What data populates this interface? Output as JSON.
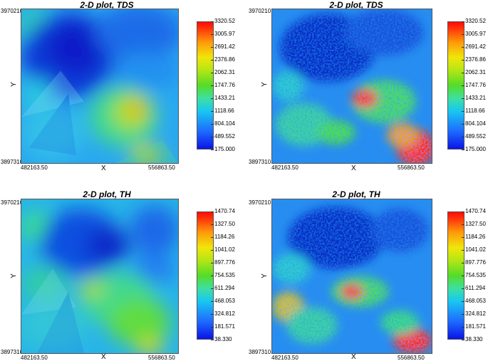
{
  "panels": [
    {
      "title": "2-D plot, TDS",
      "xlabel": "X",
      "ylabel": "Y",
      "xmin": "482163.50",
      "xmax": "556863.50",
      "ymin": "3897310",
      "ymax": "3970210",
      "style": "smooth",
      "colorbar": [
        "3320.52",
        "3005.97",
        "2691.42",
        "2376.86",
        "2062.31",
        "1747.76",
        "1433.21",
        "1118.66",
        "804.104",
        "489.552",
        "175.000"
      ]
    },
    {
      "title": "2-D plot, TDS",
      "xlabel": "X",
      "ylabel": "Y",
      "xmin": "482163.50",
      "xmax": "556863.50",
      "ymin": "3897310",
      "ymax": "3970210",
      "style": "noisy",
      "colorbar": [
        "3320.52",
        "3005.97",
        "2691.42",
        "2376.86",
        "2062.31",
        "1747.76",
        "1433.21",
        "1118.66",
        "804.104",
        "489.552",
        "175.000"
      ]
    },
    {
      "title": "2-D plot, TH",
      "xlabel": "X",
      "ylabel": "Y",
      "xmin": "482163.50",
      "xmax": "556863.50",
      "ymin": "3897310",
      "ymax": "3970210",
      "style": "smooth",
      "colorbar": [
        "1470.74",
        "1327.50",
        "1184.26",
        "1041.02",
        "897.776",
        "754.535",
        "611.294",
        "468.053",
        "324.812",
        "181.571",
        "38.330"
      ]
    },
    {
      "title": "2-D plot, TH",
      "xlabel": "X",
      "ylabel": "Y",
      "xmin": "482163.50",
      "xmax": "556863.50",
      "ymin": "3897310",
      "ymax": "3970210",
      "style": "noisy",
      "colorbar": [
        "1470.74",
        "1327.50",
        "1184.26",
        "1041.02",
        "897.776",
        "754.535",
        "611.294",
        "468.053",
        "324.812",
        "181.571",
        "38.330"
      ]
    }
  ],
  "chart_data": [
    {
      "type": "heatmap",
      "title": "2-D plot, TDS",
      "xlabel": "X",
      "ylabel": "Y",
      "xlim": [
        482163.5,
        556863.5
      ],
      "ylim": [
        3897310,
        3970210
      ],
      "colorbar_range": [
        175.0,
        3320.52
      ],
      "colorbar_ticks": [
        3320.52,
        3005.97,
        2691.42,
        2376.86,
        2062.31,
        1747.76,
        1433.21,
        1118.66,
        804.104,
        489.552,
        175.0
      ]
    },
    {
      "type": "heatmap",
      "title": "2-D plot, TDS",
      "xlabel": "X",
      "ylabel": "Y",
      "xlim": [
        482163.5,
        556863.5
      ],
      "ylim": [
        3897310,
        3970210
      ],
      "colorbar_range": [
        175.0,
        3320.52
      ],
      "colorbar_ticks": [
        3320.52,
        3005.97,
        2691.42,
        2376.86,
        2062.31,
        1747.76,
        1433.21,
        1118.66,
        804.104,
        489.552,
        175.0
      ]
    },
    {
      "type": "heatmap",
      "title": "2-D plot, TH",
      "xlabel": "X",
      "ylabel": "Y",
      "xlim": [
        482163.5,
        556863.5
      ],
      "ylim": [
        3897310,
        3970210
      ],
      "colorbar_range": [
        38.33,
        1470.74
      ],
      "colorbar_ticks": [
        1470.74,
        1327.5,
        1184.26,
        1041.02,
        897.776,
        754.535,
        611.294,
        468.053,
        324.812,
        181.571,
        38.33
      ]
    },
    {
      "type": "heatmap",
      "title": "2-D plot, TH",
      "xlabel": "X",
      "ylabel": "Y",
      "xlim": [
        482163.5,
        556863.5
      ],
      "ylim": [
        3897310,
        3970210
      ],
      "colorbar_range": [
        38.33,
        1470.74
      ],
      "colorbar_ticks": [
        1470.74,
        1327.5,
        1184.26,
        1041.02,
        897.776,
        754.535,
        611.294,
        468.053,
        324.812,
        181.571,
        38.33
      ]
    }
  ]
}
